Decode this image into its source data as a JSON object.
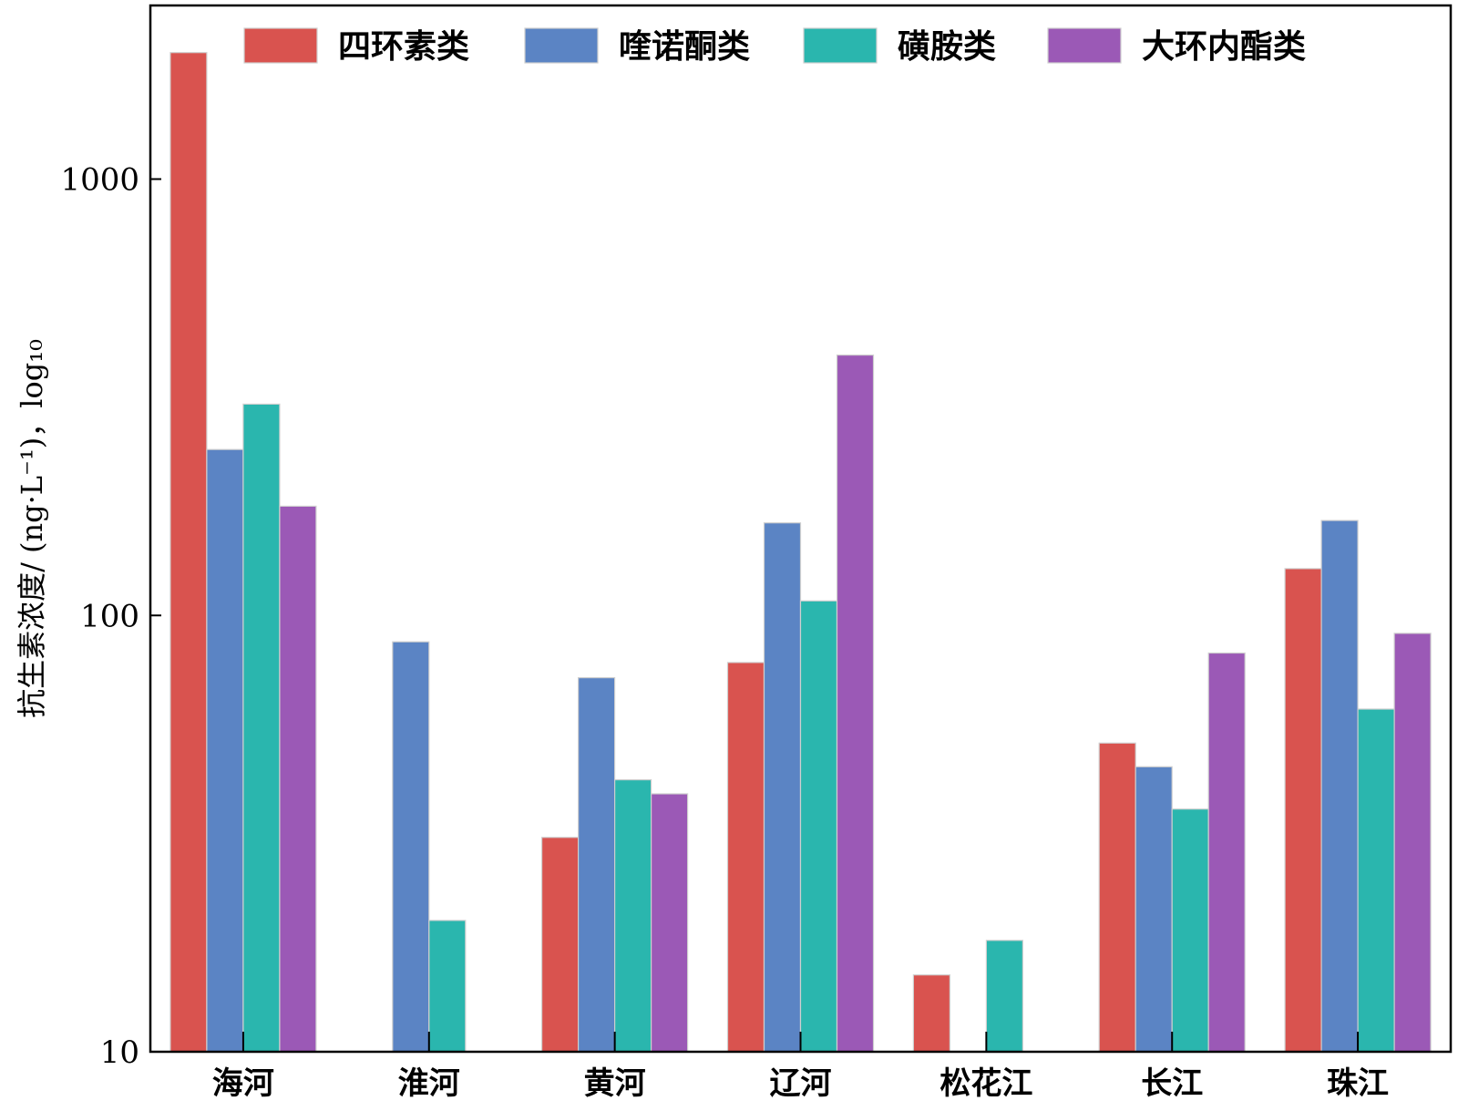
{
  "chart_data": {
    "type": "bar",
    "categories": [
      "海河",
      "淮河",
      "黄河",
      "辽河",
      "松花江",
      "长江",
      "珠江"
    ],
    "series": [
      {
        "name": "四环素类",
        "color": "#d9534f",
        "values": [
          1950,
          null,
          31,
          78,
          15,
          51,
          128
        ]
      },
      {
        "name": "喹诺酮类",
        "color": "#5b84c4",
        "values": [
          240,
          87,
          72,
          163,
          null,
          45,
          165
        ]
      },
      {
        "name": "磺胺类",
        "color": "#2ab6ae",
        "values": [
          305,
          20,
          42,
          108,
          18,
          36,
          61
        ]
      },
      {
        "name": "大环内酯类",
        "color": "#9b59b6",
        "values": [
          178,
          null,
          39,
          395,
          null,
          82,
          91
        ]
      }
    ],
    "ylabel": "抗生素浓度/ (ng·L⁻¹)，log₁₀",
    "yscale": "log",
    "ylim": [
      10,
      2500
    ],
    "yticks": [
      "10",
      "100",
      "1000"
    ],
    "legend_position": "top",
    "grid": false
  }
}
